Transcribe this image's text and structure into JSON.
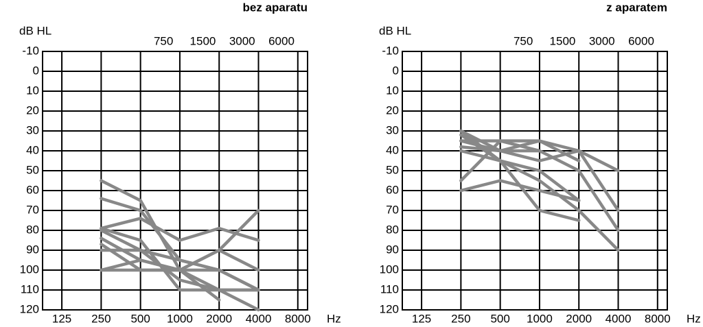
{
  "chart_data": [
    {
      "type": "line",
      "title": "bez aparatu",
      "y_label": "dB HL",
      "x_label": "Hz",
      "log_x": true,
      "invert_y": true,
      "grid": true,
      "x": [
        250,
        500,
        1000,
        2000,
        4000
      ],
      "xlim": [
        89,
        9500
      ],
      "xticks": [
        125,
        250,
        500,
        1000,
        2000,
        4000,
        8000
      ],
      "top_xticks": [
        750,
        1500,
        3000,
        6000
      ],
      "ylim": [
        -10,
        120
      ],
      "yticks": [
        -10,
        0,
        10,
        20,
        30,
        40,
        50,
        60,
        70,
        80,
        90,
        100,
        110,
        120
      ],
      "series": [
        {
          "color": "#888888",
          "values": [
            55,
            65,
            100,
            115,
            null
          ]
        },
        {
          "color": "#888888",
          "values": [
            64,
            70,
            95,
            100,
            110
          ]
        },
        {
          "color": "#888888",
          "values": [
            79,
            74,
            85,
            79,
            85
          ]
        },
        {
          "color": "#888888",
          "values": [
            79,
            85,
            110,
            110,
            110
          ]
        },
        {
          "color": "#888888",
          "values": [
            84,
            95,
            100,
            90,
            100
          ]
        },
        {
          "color": "#888888",
          "values": [
            87,
            100,
            100,
            110,
            120
          ]
        },
        {
          "color": "#888888",
          "values": [
            90,
            90,
            95,
            100,
            110
          ]
        },
        {
          "color": "#888888",
          "values": [
            100,
            100,
            100,
            100,
            110
          ]
        },
        {
          "color": "#888888",
          "values": [
            100,
            95,
            100,
            90,
            70
          ]
        },
        {
          "color": "#888888",
          "values": [
            80,
            90,
            105,
            110,
            110
          ]
        }
      ]
    },
    {
      "type": "line",
      "title": "z aparatem",
      "y_label": "dB HL",
      "x_label": "Hz",
      "log_x": true,
      "invert_y": true,
      "grid": true,
      "x": [
        250,
        500,
        1000,
        2000,
        4000
      ],
      "xlim": [
        89,
        9500
      ],
      "xticks": [
        125,
        250,
        500,
        1000,
        2000,
        4000,
        8000
      ],
      "top_xticks": [
        750,
        1500,
        3000,
        6000
      ],
      "ylim": [
        -10,
        120
      ],
      "yticks": [
        -10,
        0,
        10,
        20,
        30,
        40,
        50,
        60,
        70,
        80,
        90,
        100,
        110,
        120
      ],
      "series": [
        {
          "color": "#888888",
          "values": [
            30,
            40,
            35,
            40,
            50
          ]
        },
        {
          "color": "#888888",
          "values": [
            30,
            45,
            50,
            65,
            null
          ]
        },
        {
          "color": "#888888",
          "values": [
            35,
            40,
            45,
            40,
            70
          ]
        },
        {
          "color": "#888888",
          "values": [
            35,
            35,
            35,
            45,
            null
          ]
        },
        {
          "color": "#888888",
          "values": [
            55,
            35,
            40,
            null,
            null
          ]
        },
        {
          "color": "#888888",
          "values": [
            60,
            55,
            60,
            65,
            null
          ]
        },
        {
          "color": "#888888",
          "values": [
            32,
            45,
            70,
            75,
            null
          ]
        },
        {
          "color": "#888888",
          "values": [
            40,
            45,
            55,
            70,
            90
          ]
        },
        {
          "color": "#888888",
          "values": [
            38,
            40,
            40,
            50,
            80
          ]
        }
      ]
    }
  ]
}
